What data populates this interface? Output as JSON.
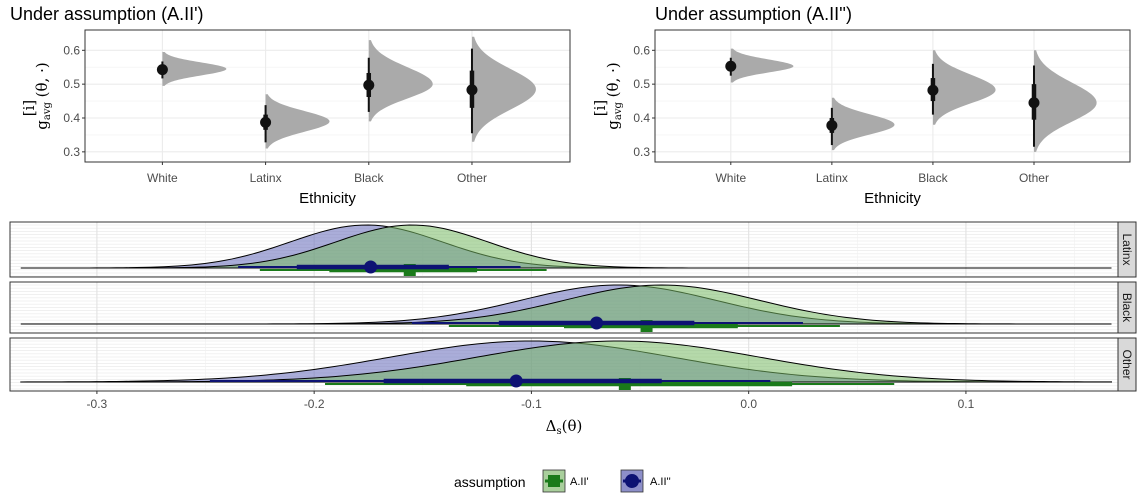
{
  "chart_data": [
    {
      "type": "violin",
      "title": "Under assumption (A.II')",
      "xlabel": "Ethnicity",
      "ylabel_main": "g",
      "ylabel_sup": "[i]",
      "ylabel_sub": "avg",
      "ylabel_args": "(θ, ·)",
      "categories": [
        "White",
        "Latinx",
        "Black",
        "Other"
      ],
      "yticks": [
        "0.3",
        "0.4",
        "0.5",
        "0.6"
      ],
      "ylim": [
        0.27,
        0.66
      ],
      "points": [
        {
          "category": "White",
          "median": 0.543,
          "inner": [
            0.53,
            0.556
          ],
          "outer": [
            0.517,
            0.567
          ],
          "dens_mode": 0.545,
          "dens_lo": 0.495,
          "dens_hi": 0.595
        },
        {
          "category": "Latinx",
          "median": 0.387,
          "inner": [
            0.365,
            0.41
          ],
          "outer": [
            0.328,
            0.438
          ],
          "dens_mode": 0.39,
          "dens_lo": 0.31,
          "dens_hi": 0.47
        },
        {
          "category": "Black",
          "median": 0.497,
          "inner": [
            0.462,
            0.533
          ],
          "outer": [
            0.418,
            0.578
          ],
          "dens_mode": 0.5,
          "dens_lo": 0.39,
          "dens_hi": 0.63
        },
        {
          "category": "Other",
          "median": 0.483,
          "inner": [
            0.43,
            0.54
          ],
          "outer": [
            0.355,
            0.605
          ],
          "dens_mode": 0.485,
          "dens_lo": 0.33,
          "dens_hi": 0.64
        }
      ]
    },
    {
      "type": "violin",
      "title": "Under assumption (A.II'')",
      "xlabel": "Ethnicity",
      "ylabel_main": "g",
      "ylabel_sup": "[i]",
      "ylabel_sub": "avg",
      "ylabel_args": "(θ, ·)",
      "categories": [
        "White",
        "Latinx",
        "Black",
        "Other"
      ],
      "yticks": [
        "0.3",
        "0.4",
        "0.5",
        "0.6"
      ],
      "ylim": [
        0.27,
        0.66
      ],
      "points": [
        {
          "category": "White",
          "median": 0.553,
          "inner": [
            0.54,
            0.566
          ],
          "outer": [
            0.525,
            0.578
          ],
          "dens_mode": 0.553,
          "dens_lo": 0.505,
          "dens_hi": 0.605
        },
        {
          "category": "Latinx",
          "median": 0.378,
          "inner": [
            0.356,
            0.4
          ],
          "outer": [
            0.32,
            0.43
          ],
          "dens_mode": 0.38,
          "dens_lo": 0.305,
          "dens_hi": 0.46
        },
        {
          "category": "Black",
          "median": 0.482,
          "inner": [
            0.45,
            0.518
          ],
          "outer": [
            0.41,
            0.56
          ],
          "dens_mode": 0.483,
          "dens_lo": 0.38,
          "dens_hi": 0.6
        },
        {
          "category": "Other",
          "median": 0.445,
          "inner": [
            0.395,
            0.5
          ],
          "outer": [
            0.315,
            0.555
          ],
          "dens_mode": 0.445,
          "dens_lo": 0.3,
          "dens_hi": 0.6
        }
      ]
    },
    {
      "type": "density",
      "xlabel_main": "Δ",
      "xlabel_sub": "s",
      "xlabel_args": "(θ)",
      "xlim": [
        -0.34,
        0.17
      ],
      "xticks": [
        "-0.3",
        "-0.2",
        "-0.1",
        "0.0",
        "0.1"
      ],
      "facets": [
        {
          "label": "Latinx",
          "series": [
            {
              "assumption": "A.II'",
              "mode": -0.155,
              "sd": 0.035,
              "point": -0.156,
              "inner": [
                -0.193,
                -0.125
              ],
              "outer": [
                -0.225,
                -0.093
              ]
            },
            {
              "assumption": "A.II''",
              "mode": -0.176,
              "sd": 0.035,
              "point": -0.174,
              "inner": [
                -0.208,
                -0.138
              ],
              "outer": [
                -0.235,
                -0.105
              ]
            }
          ]
        },
        {
          "label": "Black",
          "series": [
            {
              "assumption": "A.II'",
              "mode": -0.04,
              "sd": 0.045,
              "point": -0.047,
              "inner": [
                -0.085,
                -0.005
              ],
              "outer": [
                -0.138,
                0.042
              ]
            },
            {
              "assumption": "A.II''",
              "mode": -0.06,
              "sd": 0.045,
              "point": -0.07,
              "inner": [
                -0.115,
                -0.025
              ],
              "outer": [
                -0.155,
                0.025
              ]
            }
          ]
        },
        {
          "label": "Other",
          "series": [
            {
              "assumption": "A.II'",
              "mode": -0.06,
              "sd": 0.065,
              "point": -0.057,
              "inner": [
                -0.13,
                0.02
              ],
              "outer": [
                -0.195,
                0.067
              ]
            },
            {
              "assumption": "A.II''",
              "mode": -0.1,
              "sd": 0.065,
              "point": -0.107,
              "inner": [
                -0.168,
                -0.04
              ],
              "outer": [
                -0.248,
                0.01
              ]
            }
          ]
        }
      ],
      "legend": {
        "title": "assumption",
        "position": "bottom",
        "items": [
          {
            "label": "A.II'",
            "color": "#1a7a1a",
            "fill": "#a9cf9c",
            "shape": "square"
          },
          {
            "label": "A.II''",
            "color": "#0d1273",
            "fill": "#8d8fc9",
            "shape": "circle"
          }
        ]
      }
    }
  ]
}
